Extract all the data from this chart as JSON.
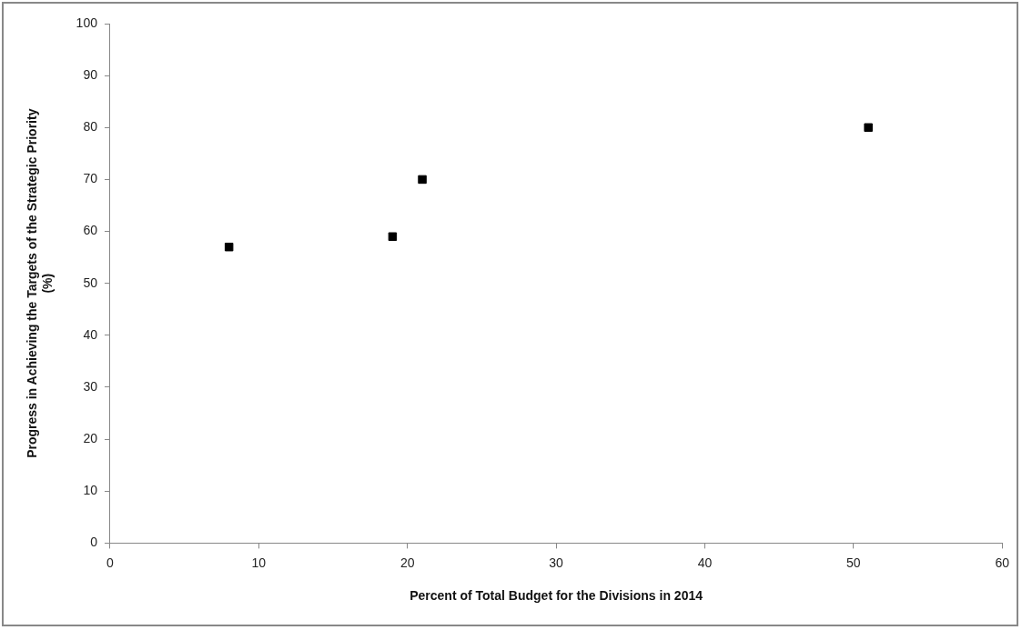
{
  "chart_data": {
    "type": "scatter",
    "xlabel": "Percent of Total Budget for the Divisions in 2014",
    "ylabel": "Progress in Achieving the Targets of the Strategic Priority\n(%)",
    "x": [
      8,
      19,
      21,
      51
    ],
    "series": [
      {
        "color": "#000000",
        "values": [
          57,
          59,
          70,
          80
        ]
      }
    ],
    "xlim": [
      0,
      60
    ],
    "xticks": [
      0,
      10,
      20,
      30,
      40,
      50,
      60
    ],
    "ylim": [
      0,
      100
    ],
    "yticks": [
      0,
      10,
      20,
      30,
      40,
      50,
      60,
      70,
      80,
      90,
      100
    ],
    "grid": false,
    "legend": false,
    "marker": "square"
  }
}
